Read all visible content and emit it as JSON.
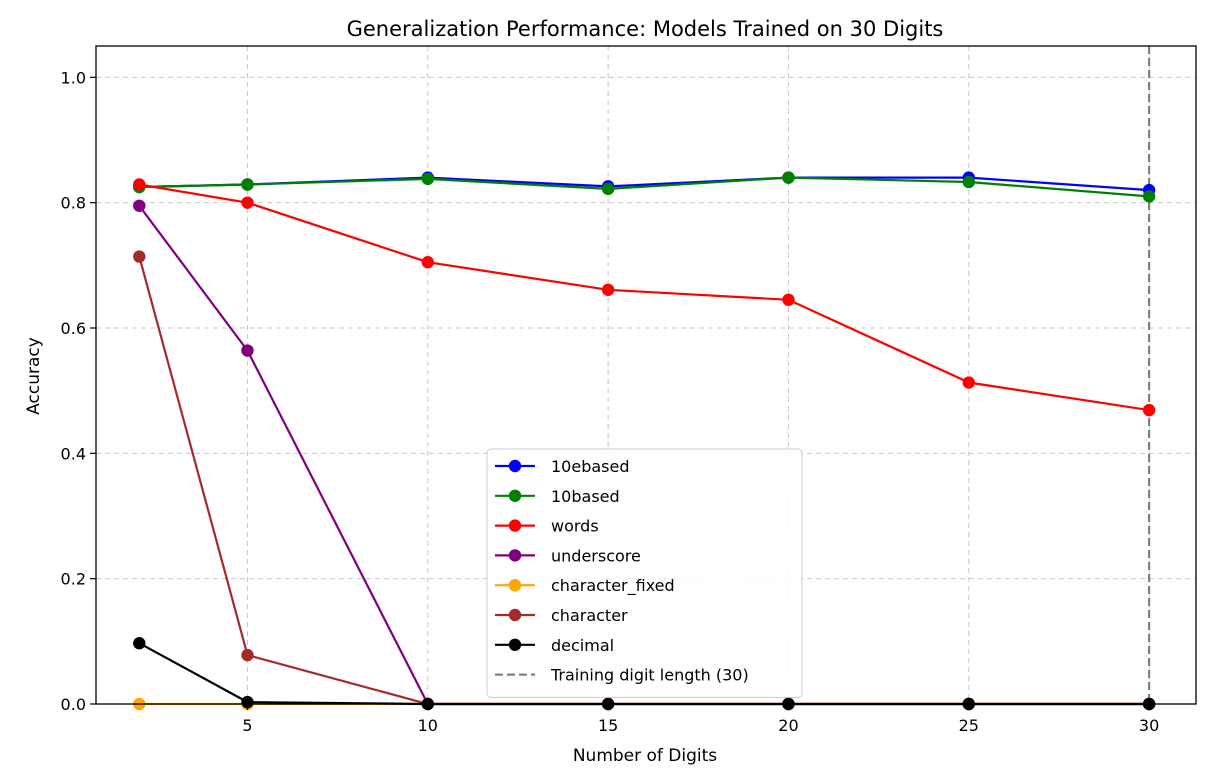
{
  "chart_data": {
    "type": "line",
    "title": "Generalization Performance: Models Trained on 30 Digits",
    "xlabel": "Number of Digits",
    "ylabel": "Accuracy",
    "xlim": [
      0.8,
      31.3
    ],
    "ylim": [
      0.0,
      1.05
    ],
    "xticks": [
      5,
      10,
      15,
      20,
      25,
      30
    ],
    "yticks": [
      0.0,
      0.2,
      0.4,
      0.6,
      0.8,
      1.0
    ],
    "grid": true,
    "legend_position": "lower center",
    "x": [
      2,
      5,
      10,
      15,
      20,
      25,
      30
    ],
    "series": [
      {
        "name": "10ebased",
        "color": "#0000ff",
        "values": [
          0.825,
          0.829,
          0.84,
          0.826,
          0.84,
          0.84,
          0.82
        ]
      },
      {
        "name": "10based",
        "color": "#008000",
        "values": [
          0.825,
          0.829,
          0.838,
          0.822,
          0.84,
          0.833,
          0.81
        ]
      },
      {
        "name": "words",
        "color": "#ff0000",
        "values": [
          0.829,
          0.8,
          0.705,
          0.661,
          0.645,
          0.513,
          0.469
        ]
      },
      {
        "name": "underscore",
        "color": "#800080",
        "values": [
          0.795,
          0.564,
          0.0,
          0.0,
          0.0,
          0.0,
          0.0
        ]
      },
      {
        "name": "character_fixed",
        "color": "#ffa500",
        "values": [
          0.0,
          0.0,
          0.0,
          0.0,
          0.0,
          0.0,
          0.0
        ]
      },
      {
        "name": "character",
        "color": "#a52a2a",
        "values": [
          0.714,
          0.078,
          0.0,
          0.0,
          0.0,
          0.0,
          0.0
        ]
      },
      {
        "name": "decimal",
        "color": "#000000",
        "values": [
          0.097,
          0.003,
          0.0,
          0.0,
          0.0,
          0.0,
          0.0
        ]
      }
    ],
    "reference_line": {
      "name": "Training digit length (30)",
      "x": 30,
      "color": "#808080",
      "style": "dashed"
    }
  }
}
